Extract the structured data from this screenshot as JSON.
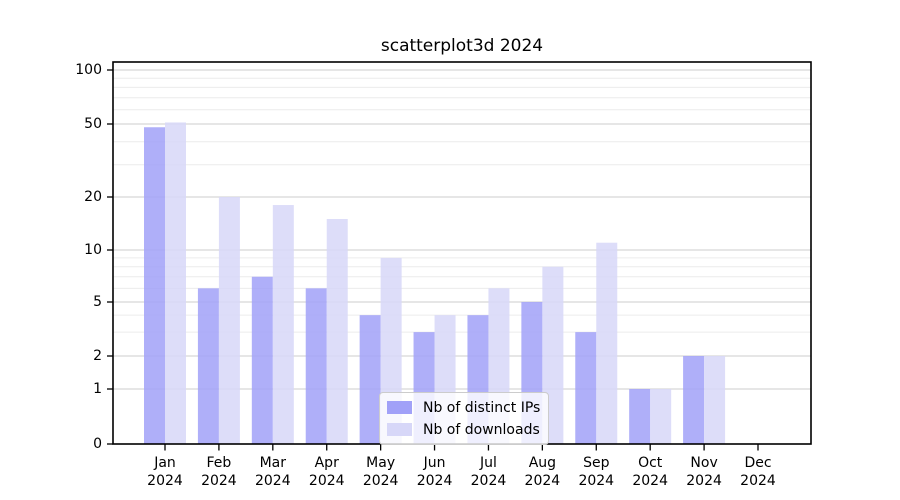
{
  "title": "scatterplot3d 2024",
  "chart_data": {
    "type": "bar",
    "title": "scatterplot3d 2024",
    "categories": [
      "Jan 2024",
      "Feb 2024",
      "Mar 2024",
      "Apr 2024",
      "May 2024",
      "Jun 2024",
      "Jul 2024",
      "Aug 2024",
      "Sep 2024",
      "Oct 2024",
      "Nov 2024",
      "Dec 2024"
    ],
    "series": [
      {
        "name": "Nb of distinct IPs",
        "color": "#a1a1f8",
        "values": [
          48,
          6,
          7,
          6,
          4,
          3,
          4,
          5,
          3,
          1,
          2,
          0
        ]
      },
      {
        "name": "Nb of downloads",
        "color": "#d7d7f8",
        "values": [
          51,
          20,
          18,
          15,
          9,
          4,
          6,
          8,
          11,
          1,
          2,
          0
        ]
      }
    ],
    "yticks": [
      0,
      1,
      2,
      5,
      10,
      20,
      50,
      100
    ],
    "minor_gridlines": [
      3,
      4,
      6,
      7,
      8,
      9,
      30,
      40,
      60,
      70,
      80,
      90
    ],
    "ylim": [
      0,
      100
    ],
    "yscale": "symlog",
    "grid": true,
    "legend_position": "lower center",
    "colors": {
      "major_gridline": "#cccccc",
      "minor_gridline": "#ececec",
      "frame": "#000000",
      "text": "#000000"
    }
  }
}
